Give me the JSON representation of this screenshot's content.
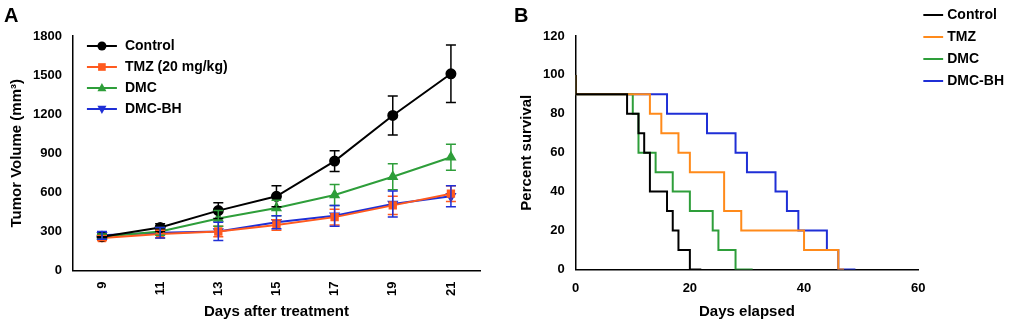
{
  "chart_data": [
    {
      "type": "line",
      "title": "A",
      "x_label": "Days after treatment",
      "y_label": "Tumor Volume (mm³)",
      "categories": [
        "9",
        "11",
        "13",
        "15",
        "17",
        "19",
        "21"
      ],
      "ylim": [
        0,
        1800
      ],
      "yticks": [
        0,
        300,
        600,
        900,
        1200,
        1500,
        1800
      ],
      "grid": false,
      "legend": "upper left",
      "series": [
        {
          "name": "Control",
          "color": "#000000",
          "marker": "circle",
          "line_style": "solid",
          "values": [
            260,
            330,
            460,
            570,
            840,
            1190,
            1510
          ],
          "errors": [
            20,
            30,
            60,
            80,
            80,
            150,
            220
          ]
        },
        {
          "name": "TMZ (20 mg/kg)",
          "color": "#ff5a1f",
          "marker": "square",
          "line_style": "solid",
          "values": [
            250,
            280,
            300,
            350,
            410,
            500,
            590
          ],
          "errors": [
            20,
            30,
            40,
            40,
            60,
            70,
            60
          ]
        },
        {
          "name": "DMC",
          "color": "#2e9e3a",
          "marker": "triangle-up",
          "line_style": "solid",
          "values": [
            260,
            300,
            400,
            480,
            580,
            720,
            870
          ],
          "errors": [
            20,
            30,
            60,
            60,
            80,
            100,
            100
          ]
        },
        {
          "name": "DMC-BH",
          "color": "#1f2fd6",
          "marker": "triangle-down",
          "line_style": "solid",
          "values": [
            270,
            290,
            300,
            370,
            420,
            510,
            570
          ],
          "errors": [
            30,
            40,
            70,
            50,
            80,
            100,
            80
          ]
        }
      ]
    },
    {
      "type": "line",
      "title": "B",
      "x_label": "Days elapsed",
      "y_label": "Percent survival",
      "xlim": [
        0,
        60
      ],
      "xticks": [
        0,
        20,
        40,
        60
      ],
      "ylim": [
        0,
        120
      ],
      "yticks": [
        0,
        20,
        40,
        60,
        80,
        100,
        120
      ],
      "grid": false,
      "legend": "right",
      "series": [
        {
          "name": "Control",
          "color": "#000000",
          "line_style": "step",
          "x": [
            0,
            9,
            11,
            12,
            13,
            16,
            17,
            18,
            20,
            22
          ],
          "values": [
            100,
            90,
            80,
            70,
            60,
            40,
            30,
            20,
            10,
            0
          ]
        },
        {
          "name": "TMZ",
          "color": "#ff8a1a",
          "line_style": "step",
          "x": [
            0,
            13,
            15,
            18,
            20,
            26,
            29,
            40,
            46,
            47
          ],
          "values": [
            100,
            90,
            80,
            70,
            60,
            50,
            30,
            20,
            10,
            0
          ]
        },
        {
          "name": "DMC",
          "color": "#2e9e3a",
          "line_style": "step",
          "x": [
            0,
            10,
            11,
            14,
            17,
            20,
            24,
            25,
            28,
            31
          ],
          "values": [
            100,
            90,
            80,
            60,
            50,
            40,
            30,
            20,
            10,
            0
          ]
        },
        {
          "name": "DMC-BH",
          "color": "#1f2fd6",
          "line_style": "step",
          "x": [
            0,
            16,
            23,
            28,
            30,
            35,
            37,
            39,
            44,
            46,
            49
          ],
          "values": [
            100,
            90,
            80,
            70,
            60,
            50,
            40,
            30,
            20,
            10,
            0
          ]
        }
      ]
    }
  ]
}
